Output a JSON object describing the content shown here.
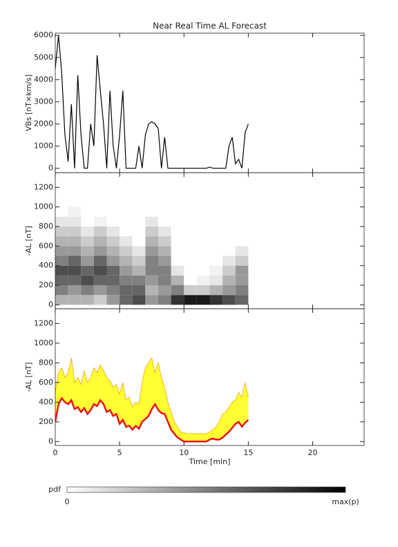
{
  "chart_data": [
    {
      "type": "line",
      "title": "Near Real Time AL Forecast",
      "ylabel": "VBs [nT×km/s]",
      "x": [
        0,
        0.25,
        0.5,
        0.75,
        1,
        1.25,
        1.5,
        1.75,
        2,
        2.25,
        2.5,
        2.75,
        3,
        3.25,
        3.5,
        3.75,
        4,
        4.25,
        4.5,
        4.75,
        5,
        5.25,
        5.5,
        5.75,
        6,
        6.25,
        6.5,
        6.75,
        7,
        7.25,
        7.5,
        7.75,
        8,
        8.25,
        8.5,
        8.75,
        9,
        9.25,
        9.5,
        9.75,
        10,
        10.25,
        10.5,
        10.75,
        11,
        11.25,
        11.5,
        11.75,
        12,
        12.25,
        12.5,
        12.75,
        13,
        13.25,
        13.5,
        13.75,
        14,
        14.25,
        14.5,
        14.75,
        15
      ],
      "series": [
        {
          "color": "#000000",
          "values": [
            4500,
            6000,
            4300,
            1500,
            300,
            2900,
            0,
            4200,
            1500,
            0,
            0,
            2000,
            1000,
            5100,
            3500,
            2000,
            0,
            3500,
            1000,
            0,
            1500,
            3500,
            0,
            0,
            0,
            0,
            1000,
            0,
            1500,
            2000,
            2100,
            2000,
            1800,
            0,
            1400,
            0,
            0,
            0,
            0,
            0,
            0,
            0,
            0,
            0,
            0,
            0,
            0,
            0,
            50,
            0,
            0,
            0,
            0,
            0,
            1000,
            1400,
            200,
            400,
            0,
            1600,
            2000
          ]
        }
      ],
      "xlim": [
        0,
        24
      ],
      "xticks": [
        0,
        5,
        10,
        15,
        20
      ],
      "ylim": [
        -200,
        6100
      ],
      "yticks": [
        0,
        1000,
        2000,
        3000,
        4000,
        5000,
        6000
      ]
    },
    {
      "type": "heatmap",
      "ylabel": "-AL [nT]",
      "x_edges": [
        0,
        1,
        2,
        3,
        4,
        5,
        6,
        7,
        8,
        9,
        10,
        11,
        12,
        13,
        14,
        15
      ],
      "y_edges": [
        0,
        100,
        200,
        300,
        400,
        500,
        600,
        700,
        800,
        900,
        1000
      ],
      "z": [
        [
          0.3,
          0.5,
          0.6,
          0.7,
          0.5,
          0.4,
          0.3,
          0.2,
          0.1,
          0
        ],
        [
          0.3,
          0.4,
          0.6,
          0.7,
          0.6,
          0.4,
          0.3,
          0.2,
          0.1,
          0.05
        ],
        [
          0.3,
          0.5,
          0.7,
          0.6,
          0.4,
          0.3,
          0.2,
          0.1,
          0,
          0
        ],
        [
          0.2,
          0.4,
          0.6,
          0.7,
          0.6,
          0.4,
          0.3,
          0.2,
          0.05,
          0
        ],
        [
          0.4,
          0.5,
          0.6,
          0.6,
          0.4,
          0.3,
          0.2,
          0.1,
          0,
          0
        ],
        [
          0.6,
          0.6,
          0.5,
          0.4,
          0.3,
          0.2,
          0.1,
          0,
          0,
          0
        ],
        [
          0.7,
          0.6,
          0.5,
          0.3,
          0.2,
          0.1,
          0,
          0,
          0,
          0
        ],
        [
          0.4,
          0.3,
          0.4,
          0.5,
          0.5,
          0.4,
          0.3,
          0.2,
          0.1,
          0
        ],
        [
          0.5,
          0.4,
          0.5,
          0.5,
          0.4,
          0.3,
          0.2,
          0.1,
          0,
          0
        ],
        [
          0.8,
          0.5,
          0.3,
          0.1,
          0,
          0,
          0,
          0,
          0,
          0
        ],
        [
          0.9,
          0.2,
          0,
          0,
          0,
          0,
          0,
          0,
          0,
          0
        ],
        [
          0.9,
          0.2,
          0.05,
          0,
          0,
          0,
          0,
          0,
          0,
          0
        ],
        [
          0.8,
          0.3,
          0.1,
          0.05,
          0,
          0,
          0,
          0,
          0,
          0
        ],
        [
          0.7,
          0.4,
          0.3,
          0.2,
          0.1,
          0,
          0,
          0,
          0,
          0
        ],
        [
          0.6,
          0.5,
          0.4,
          0.4,
          0.2,
          0.1,
          0,
          0,
          0,
          0
        ]
      ],
      "xlim": [
        0,
        24
      ],
      "xticks": [
        0,
        5,
        10,
        15,
        20
      ],
      "ylim": [
        -40,
        1350
      ],
      "yticks": [
        0,
        200,
        400,
        600,
        800,
        1000,
        1200
      ]
    },
    {
      "type": "band",
      "ylabel": "-AL [nT]",
      "xlabel": "Time [min]",
      "x": [
        0,
        0.25,
        0.5,
        0.75,
        1,
        1.25,
        1.5,
        1.75,
        2,
        2.25,
        2.5,
        2.75,
        3,
        3.25,
        3.5,
        3.75,
        4,
        4.25,
        4.5,
        4.75,
        5,
        5.25,
        5.5,
        5.75,
        6,
        6.25,
        6.5,
        6.75,
        7,
        7.25,
        7.5,
        7.75,
        8,
        8.25,
        8.5,
        8.75,
        9,
        9.25,
        9.5,
        9.75,
        10,
        10.25,
        10.5,
        10.75,
        11,
        11.25,
        11.5,
        11.75,
        12,
        12.25,
        12.5,
        12.75,
        13,
        13.25,
        13.5,
        13.75,
        14,
        14.25,
        14.5,
        14.75,
        15
      ],
      "series": [
        {
          "color": "#ee1111",
          "values": [
            200,
            380,
            440,
            400,
            380,
            420,
            330,
            350,
            300,
            340,
            280,
            320,
            380,
            360,
            420,
            380,
            300,
            320,
            260,
            280,
            180,
            220,
            150,
            160,
            120,
            160,
            130,
            200,
            230,
            260,
            330,
            380,
            320,
            290,
            280,
            200,
            120,
            80,
            40,
            20,
            0,
            0,
            0,
            0,
            0,
            0,
            0,
            0,
            20,
            30,
            20,
            20,
            40,
            70,
            100,
            140,
            180,
            200,
            150,
            190,
            220
          ]
        },
        {
          "color": "#ffff33",
          "values": [
            500,
            700,
            750,
            650,
            700,
            850,
            600,
            650,
            580,
            720,
            600,
            650,
            750,
            700,
            780,
            720,
            650,
            620,
            550,
            580,
            480,
            600,
            420,
            450,
            350,
            400,
            380,
            600,
            750,
            800,
            850,
            700,
            800,
            650,
            550,
            400,
            300,
            200,
            150,
            100,
            90,
            80,
            80,
            80,
            80,
            80,
            80,
            80,
            100,
            120,
            150,
            200,
            280,
            300,
            350,
            400,
            420,
            500,
            450,
            600,
            450
          ]
        }
      ],
      "xlim": [
        0,
        24
      ],
      "xticks": [
        0,
        5,
        10,
        15,
        20
      ],
      "ylim": [
        -40,
        1350
      ],
      "yticks": [
        0,
        200,
        400,
        600,
        800,
        1000,
        1200
      ]
    }
  ],
  "colorbar": {
    "label": "pdf",
    "min_label": "0",
    "max_label": "max(p)"
  }
}
